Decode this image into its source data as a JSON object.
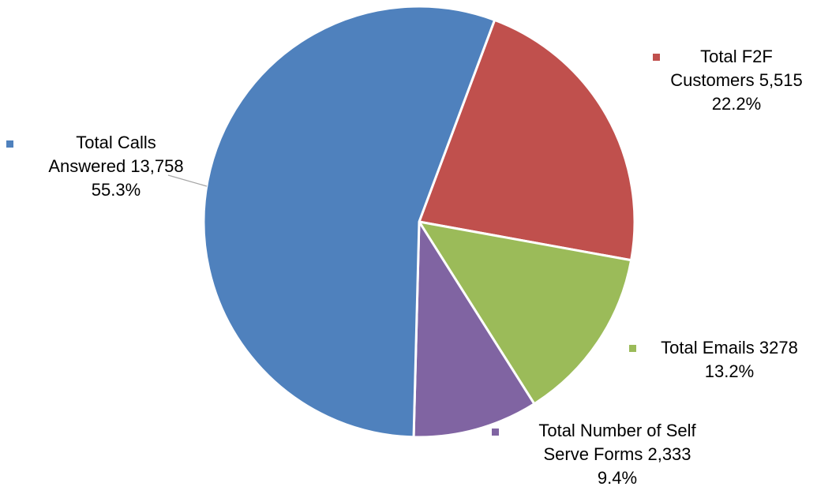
{
  "chart_data": {
    "type": "pie",
    "title": "",
    "slices": [
      {
        "name": "Total F2F Customers",
        "value": 5515,
        "value_label": "5,515",
        "percent": "22.2%",
        "color": "#C0504D",
        "label_lines": [
          "Total F2F",
          "Customers   5,515",
          "22.2%"
        ]
      },
      {
        "name": "Total Emails",
        "value": 3278,
        "value_label": "3278",
        "percent": "13.2%",
        "color": "#9BBB59",
        "label_lines": [
          "Total Emails  3278",
          "13.2%"
        ]
      },
      {
        "name": "Total Number of Self Serve Forms",
        "value": 2333,
        "value_label": "2,333",
        "percent": "9.4%",
        "color": "#8064A2",
        "label_lines": [
          "Total Number of Self",
          "Serve Forms   2,333",
          "9.4%"
        ]
      },
      {
        "name": "Total Calls Answered",
        "value": 13758,
        "value_label": "13,758",
        "percent": "55.3%",
        "color": "#4F81BD",
        "label_lines": [
          "Total Calls",
          "Answered   13,758",
          "55.3%"
        ]
      }
    ],
    "start_angle_deg": 20.5,
    "direction": "clockwise",
    "slice_border_color": "#FFFFFF",
    "leader_line_color": "#A6A6A6",
    "labels_show_legend_key": true
  }
}
